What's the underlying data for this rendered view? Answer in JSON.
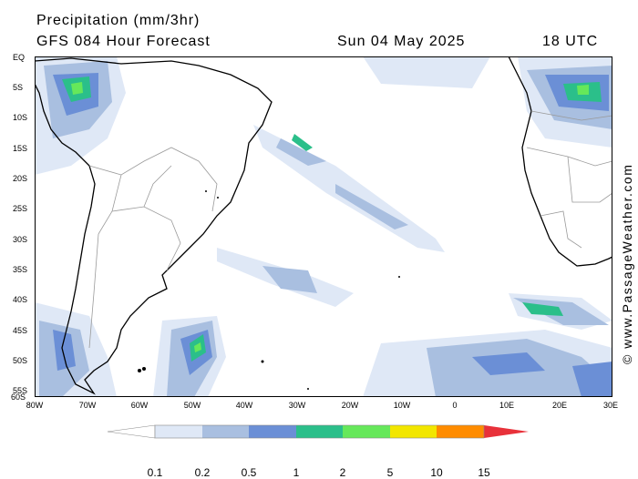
{
  "header": {
    "title": "Precipitation (mm/3hr)",
    "forecast": "GFS 084 Hour Forecast",
    "date": "Sun 04 May 2025",
    "time": "18 UTC"
  },
  "map": {
    "lat_labels": [
      "EQ",
      "5S",
      "10S",
      "15S",
      "20S",
      "25S",
      "30S",
      "35S",
      "40S",
      "45S",
      "50S",
      "55S",
      "60S"
    ],
    "lon_labels": [
      "80W",
      "70W",
      "60W",
      "50W",
      "40W",
      "30W",
      "20W",
      "10W",
      "0",
      "10E",
      "20E",
      "30E"
    ],
    "colors": {
      "ocean": "#ffffff",
      "coast": "#000000",
      "border": "#9a9a9a"
    }
  },
  "credit": "© www.PassageWeather.com",
  "legend": {
    "labels": [
      "0.1",
      "0.2",
      "0.5",
      "1",
      "2",
      "5",
      "10",
      "15"
    ],
    "colors": [
      "#ffffff",
      "#dfe8f6",
      "#a9bfe0",
      "#6b8fd6",
      "#2bbf8a",
      "#66e85a",
      "#f2e600",
      "#ff8c00",
      "#e8313a"
    ]
  }
}
